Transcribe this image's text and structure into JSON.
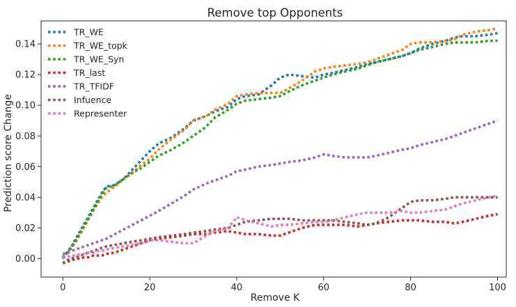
{
  "chart_data": {
    "type": "line",
    "title": "Remove top Opponents",
    "xlabel": "Remove K",
    "ylabel": "Prediction score Change",
    "xlim": [
      -5,
      102
    ],
    "ylim": [
      -0.012,
      0.155
    ],
    "xticks": [
      0,
      20,
      40,
      60,
      80,
      100
    ],
    "yticks": [
      0.0,
      0.02,
      0.04,
      0.06,
      0.08,
      0.1,
      0.12,
      0.14
    ],
    "ytick_labels": [
      "0.00",
      "0.02",
      "0.04",
      "0.06",
      "0.08",
      "0.10",
      "0.12",
      "0.14"
    ],
    "grid": false,
    "legend_position": "top-left",
    "line_style": "dotted",
    "x": [
      0,
      1,
      2,
      3,
      4,
      5,
      6,
      7,
      8,
      9,
      10,
      12,
      14,
      16,
      18,
      20,
      22,
      25,
      28,
      30,
      33,
      35,
      38,
      40,
      42,
      45,
      48,
      50,
      52,
      55,
      58,
      60,
      62,
      65,
      68,
      70,
      72,
      75,
      78,
      80,
      82,
      85,
      88,
      90,
      92,
      95,
      98,
      100
    ],
    "series": [
      {
        "name": "TR_WE",
        "color": "#1f77b4",
        "values": [
          0.0,
          0.004,
          0.008,
          0.013,
          0.018,
          0.023,
          0.028,
          0.033,
          0.038,
          0.043,
          0.047,
          0.048,
          0.052,
          0.058,
          0.064,
          0.07,
          0.075,
          0.079,
          0.085,
          0.09,
          0.093,
          0.096,
          0.099,
          0.104,
          0.106,
          0.107,
          0.113,
          0.118,
          0.12,
          0.119,
          0.118,
          0.12,
          0.121,
          0.123,
          0.125,
          0.127,
          0.128,
          0.13,
          0.132,
          0.134,
          0.137,
          0.14,
          0.142,
          0.144,
          0.145,
          0.145,
          0.146,
          0.147
        ]
      },
      {
        "name": "TR_WE_topk",
        "color": "#ff7f0e",
        "values": [
          0.001,
          0.003,
          0.007,
          0.011,
          0.016,
          0.021,
          0.026,
          0.031,
          0.036,
          0.04,
          0.043,
          0.047,
          0.052,
          0.056,
          0.061,
          0.065,
          0.071,
          0.078,
          0.084,
          0.09,
          0.093,
          0.097,
          0.101,
          0.106,
          0.107,
          0.108,
          0.108,
          0.108,
          0.111,
          0.116,
          0.122,
          0.124,
          0.125,
          0.126,
          0.127,
          0.128,
          0.13,
          0.133,
          0.136,
          0.14,
          0.141,
          0.141,
          0.142,
          0.143,
          0.146,
          0.148,
          0.149,
          0.15
        ]
      },
      {
        "name": "TR_WE_Syn",
        "color": "#2ca02c",
        "values": [
          0.001,
          0.004,
          0.008,
          0.012,
          0.017,
          0.022,
          0.027,
          0.032,
          0.037,
          0.042,
          0.046,
          0.048,
          0.052,
          0.056,
          0.059,
          0.063,
          0.067,
          0.071,
          0.076,
          0.08,
          0.086,
          0.092,
          0.097,
          0.101,
          0.103,
          0.104,
          0.105,
          0.106,
          0.109,
          0.113,
          0.116,
          0.118,
          0.12,
          0.122,
          0.124,
          0.126,
          0.128,
          0.13,
          0.132,
          0.134,
          0.136,
          0.138,
          0.14,
          0.141,
          0.141,
          0.141,
          0.142,
          0.142
        ]
      },
      {
        "name": "TR_last",
        "color": "#d62728",
        "values": [
          -0.003,
          -0.002,
          -0.001,
          0.0,
          0.0,
          0.001,
          0.001,
          0.002,
          0.002,
          0.002,
          0.003,
          0.004,
          0.006,
          0.008,
          0.01,
          0.012,
          0.013,
          0.014,
          0.015,
          0.016,
          0.016,
          0.017,
          0.018,
          0.017,
          0.016,
          0.016,
          0.015,
          0.015,
          0.017,
          0.02,
          0.022,
          0.022,
          0.022,
          0.022,
          0.021,
          0.022,
          0.023,
          0.024,
          0.025,
          0.025,
          0.025,
          0.024,
          0.024,
          0.023,
          0.024,
          0.026,
          0.028,
          0.029
        ]
      },
      {
        "name": "TR_TFIDF",
        "color": "#9467bd",
        "values": [
          0.003,
          0.004,
          0.005,
          0.006,
          0.007,
          0.008,
          0.009,
          0.01,
          0.011,
          0.012,
          0.013,
          0.016,
          0.019,
          0.022,
          0.025,
          0.028,
          0.031,
          0.036,
          0.041,
          0.045,
          0.049,
          0.051,
          0.054,
          0.057,
          0.058,
          0.06,
          0.061,
          0.062,
          0.063,
          0.064,
          0.066,
          0.068,
          0.067,
          0.066,
          0.066,
          0.066,
          0.067,
          0.069,
          0.071,
          0.072,
          0.074,
          0.076,
          0.078,
          0.08,
          0.082,
          0.085,
          0.088,
          0.09
        ]
      },
      {
        "name": "Infuence",
        "color": "#8c564b",
        "values": [
          -0.003,
          -0.001,
          0.0,
          0.001,
          0.002,
          0.003,
          0.004,
          0.005,
          0.006,
          0.007,
          0.008,
          0.009,
          0.01,
          0.011,
          0.012,
          0.013,
          0.014,
          0.015,
          0.016,
          0.017,
          0.018,
          0.019,
          0.02,
          0.022,
          0.024,
          0.025,
          0.026,
          0.026,
          0.026,
          0.025,
          0.025,
          0.025,
          0.025,
          0.024,
          0.023,
          0.022,
          0.023,
          0.027,
          0.033,
          0.037,
          0.038,
          0.038,
          0.039,
          0.04,
          0.04,
          0.04,
          0.04,
          0.04
        ]
      },
      {
        "name": "Representer",
        "color": "#e377c2",
        "values": [
          0.001,
          0.001,
          0.002,
          0.002,
          0.003,
          0.003,
          0.004,
          0.004,
          0.005,
          0.005,
          0.006,
          0.007,
          0.008,
          0.009,
          0.01,
          0.012,
          0.012,
          0.011,
          0.01,
          0.01,
          0.015,
          0.018,
          0.02,
          0.027,
          0.025,
          0.023,
          0.021,
          0.022,
          0.022,
          0.023,
          0.024,
          0.024,
          0.025,
          0.027,
          0.029,
          0.03,
          0.03,
          0.03,
          0.031,
          0.03,
          0.03,
          0.031,
          0.032,
          0.034,
          0.036,
          0.038,
          0.04,
          0.041
        ]
      }
    ]
  }
}
